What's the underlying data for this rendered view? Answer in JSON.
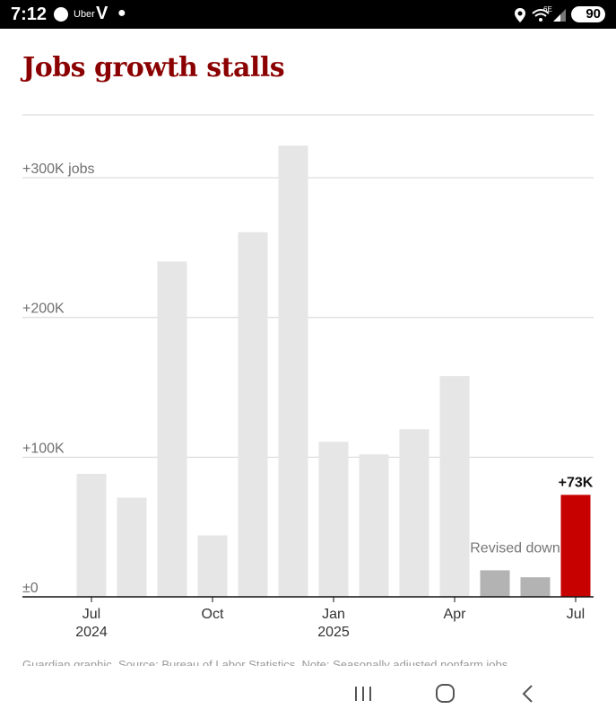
{
  "status_bar": {
    "time": "7:12",
    "app_label": "Uber",
    "v_label": "V",
    "network_label": "6E",
    "battery": "90"
  },
  "title": "Jobs growth stalls",
  "caption": "Guardian graphic. Source: Bureau of Labor Statistics. Note: Seasonally adjusted nonfarm jobs",
  "chart_data": {
    "type": "bar",
    "title": "Jobs growth stalls",
    "months": [
      "Jul 2024",
      "Aug 2024",
      "Sep 2024",
      "Oct 2024",
      "Nov 2024",
      "Dec 2024",
      "Jan 2025",
      "Feb 2025",
      "Mar 2025",
      "Apr 2025",
      "May 2025",
      "Jun 2025",
      "Jul 2025"
    ],
    "values": [
      88,
      71,
      240,
      44,
      261,
      323,
      111,
      102,
      120,
      158,
      19,
      14,
      73
    ],
    "status": [
      "normal",
      "normal",
      "normal",
      "normal",
      "normal",
      "normal",
      "normal",
      "normal",
      "normal",
      "normal",
      "revised",
      "revised",
      "latest"
    ],
    "ylim": [
      0,
      345
    ],
    "y_ticks": [
      {
        "value": 0,
        "label": "±0"
      },
      {
        "value": 100,
        "label": "+100K"
      },
      {
        "value": 200,
        "label": "+200K"
      },
      {
        "value": 300,
        "label": "+300K jobs"
      }
    ],
    "x_ticks": [
      {
        "index": 0,
        "label": "Jul",
        "year": "2024"
      },
      {
        "index": 3,
        "label": "Oct",
        "year": ""
      },
      {
        "index": 6,
        "label": "Jan",
        "year": "2025"
      },
      {
        "index": 9,
        "label": "Apr",
        "year": ""
      },
      {
        "index": 12,
        "label": "Jul",
        "year": ""
      }
    ],
    "annotations": {
      "revised": "Revised down",
      "latest": "+73K"
    },
    "colors": {
      "normal": "#e6e6e6",
      "revised": "#b3b3b3",
      "latest": "#c70000",
      "grid": "#d4d4d4",
      "axis": "#121212",
      "label": "#707070"
    },
    "grid": true
  }
}
